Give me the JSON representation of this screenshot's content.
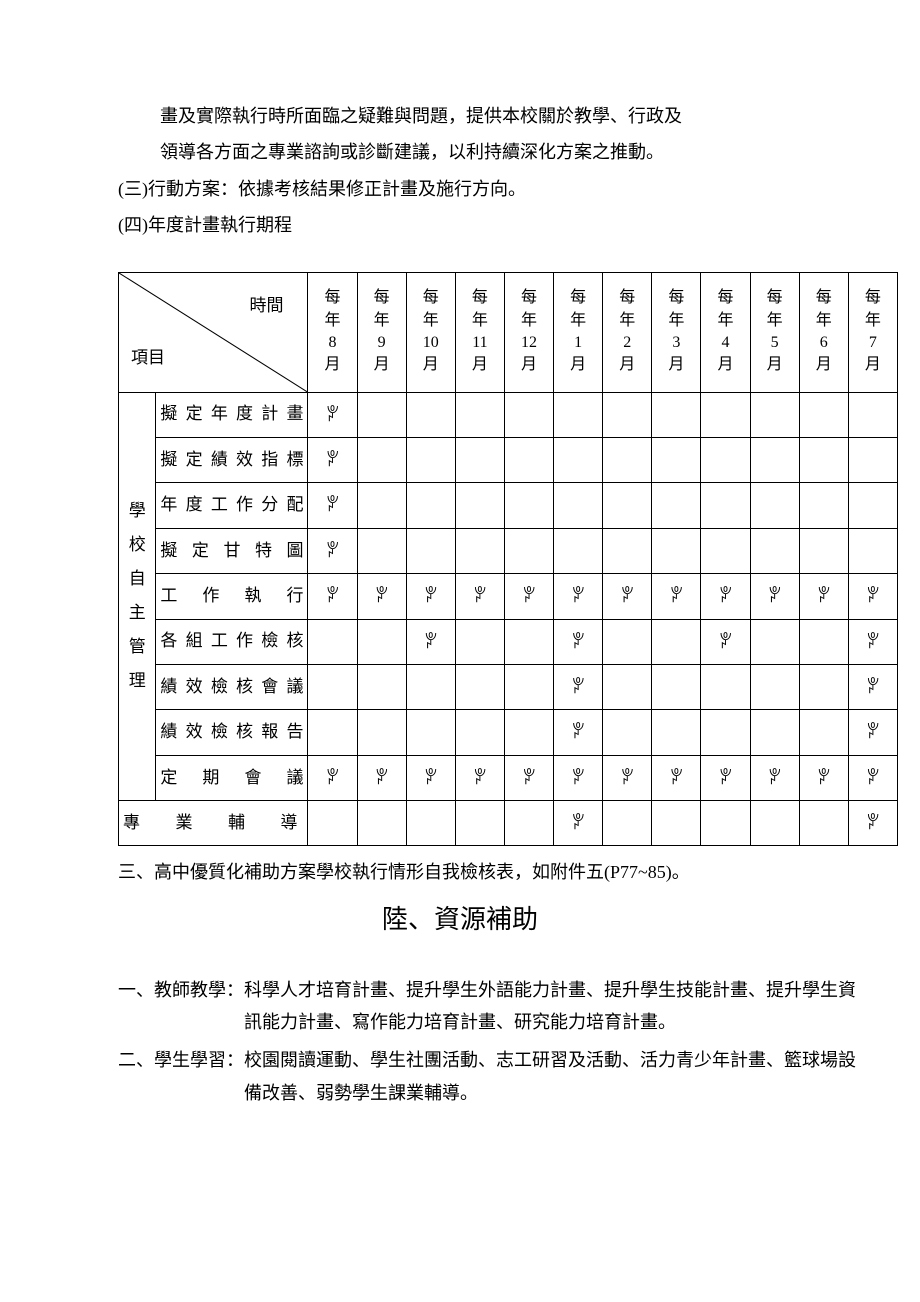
{
  "intro": {
    "line1": "畫及實際執行時所面臨之疑難與問題，提供本校關於教學、行政及",
    "line2": "領導各方面之專業諮詢或診斷建議，以利持續深化方案之推動。"
  },
  "items": {
    "three": "(三)行動方案：依據考核結果修正計畫及施行方向。",
    "four": "(四)年度計畫執行期程"
  },
  "table": {
    "diag_time": "時間",
    "diag_item": "項目",
    "months": [
      {
        "top": "每年",
        "num": "8",
        "bot": "月"
      },
      {
        "top": "每年",
        "num": "9",
        "bot": "月"
      },
      {
        "top": "每年",
        "num": "10",
        "bot": "月"
      },
      {
        "top": "每年",
        "num": "11",
        "bot": "月"
      },
      {
        "top": "每年",
        "num": "12",
        "bot": "月"
      },
      {
        "top": "每年",
        "num": "1",
        "bot": "月"
      },
      {
        "top": "每年",
        "num": "2",
        "bot": "月"
      },
      {
        "top": "每年",
        "num": "3",
        "bot": "月"
      },
      {
        "top": "每年",
        "num": "4",
        "bot": "月"
      },
      {
        "top": "每年",
        "num": "5",
        "bot": "月"
      },
      {
        "top": "每年",
        "num": "6",
        "bot": "月"
      },
      {
        "top": "每年",
        "num": "7",
        "bot": "月"
      }
    ],
    "group_label": "學校自主管理",
    "rows": [
      {
        "label": "擬定年度計畫",
        "marks": [
          "✓",
          "",
          "",
          "",
          "",
          "",
          "",
          "",
          "",
          "",
          "",
          ""
        ]
      },
      {
        "label": "擬定績效指標",
        "marks": [
          "✓",
          "",
          "",
          "",
          "",
          "",
          "",
          "",
          "",
          "",
          "",
          ""
        ]
      },
      {
        "label": "年度工作分配",
        "marks": [
          "✓",
          "",
          "",
          "",
          "",
          "",
          "",
          "",
          "",
          "",
          "",
          ""
        ]
      },
      {
        "label": "擬定甘特圖",
        "marks": [
          "✓",
          "",
          "",
          "",
          "",
          "",
          "",
          "",
          "",
          "",
          "",
          ""
        ]
      },
      {
        "label": "工作執行",
        "marks": [
          "✓",
          "✓",
          "✓",
          "✓",
          "✓",
          "✓",
          "✓",
          "✓",
          "✓",
          "✓",
          "✓",
          "✓"
        ]
      },
      {
        "label": "各組工作檢核",
        "marks": [
          "",
          "",
          "✓",
          "",
          "",
          "✓",
          "",
          "",
          "✓",
          "",
          "",
          "✓"
        ]
      },
      {
        "label": "績效檢核會議",
        "marks": [
          "",
          "",
          "",
          "",
          "",
          "✓",
          "",
          "",
          "",
          "",
          "",
          "✓"
        ]
      },
      {
        "label": "績效檢核報告",
        "marks": [
          "",
          "",
          "",
          "",
          "",
          "✓",
          "",
          "",
          "",
          "",
          "",
          "✓"
        ]
      },
      {
        "label": "定期會議",
        "marks": [
          "✓",
          "✓",
          "✓",
          "✓",
          "✓",
          "✓",
          "✓",
          "✓",
          "✓",
          "✓",
          "✓",
          "✓"
        ]
      }
    ],
    "bottom_row": {
      "label": "專業輔導",
      "marks": [
        "",
        "",
        "",
        "",
        "",
        "✓",
        "",
        "",
        "",
        "",
        "",
        "✓"
      ]
    },
    "mark_glyph": "ꐕ"
  },
  "note": "三、高中優質化補助方案學校執行情形自我檢核表，如附件五(P77~85)。",
  "section_title": "陸、資源補助",
  "list": {
    "one_label": "一、教師教學：",
    "one_content": "科學人才培育計畫、提升學生外語能力計畫、提升學生技能計畫、提升學生資訊能力計畫、寫作能力培育計畫、研究能力培育計畫。",
    "two_label": "二、學生學習：",
    "two_content": "校園閱讀運動、學生社團活動、志工研習及活動、活力青少年計畫、籃球場設備改善、弱勢學生課業輔導。"
  }
}
